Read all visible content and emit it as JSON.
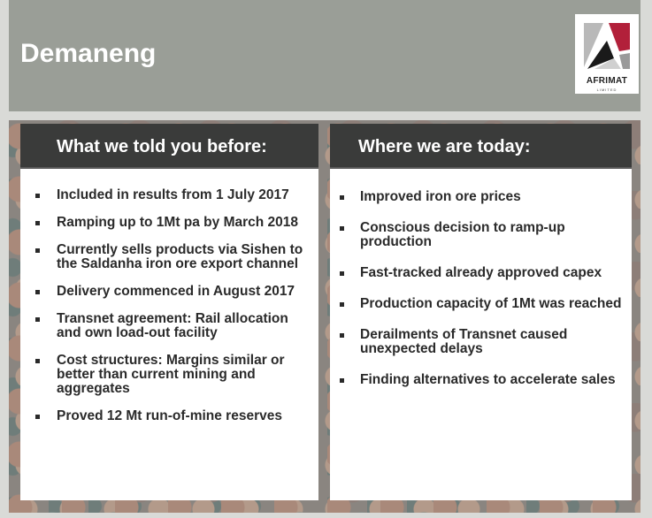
{
  "header": {
    "title": "Demaneng",
    "logo_text": "AFRIMAT",
    "logo_sub": "LIMITED",
    "logo_icon": "afrimat-logo"
  },
  "colors": {
    "header_bg": "#9a9e97",
    "panel_head": "#3a3b3a",
    "logo_red": "#b2203a"
  },
  "left": {
    "heading": "What we told you before:",
    "items": [
      "Included in results from 1 July 2017",
      "Ramping up to 1Mt pa by March 2018",
      "Currently sells products via Sishen to the Saldanha iron ore export channel",
      "Delivery commenced in August 2017",
      "Transnet agreement:  Rail allocation and own load-out facility",
      "Cost structures:  Margins similar or better than current mining and aggregates",
      "Proved 12 Mt run-of-mine reserves"
    ]
  },
  "right": {
    "heading": "Where we are today:",
    "items": [
      "Improved iron ore prices",
      "Conscious decision to ramp-up production",
      "Fast-tracked already approved capex",
      "Production capacity of 1Mt was reached",
      "Derailments of Transnet caused unexpected delays",
      "Finding alternatives to accelerate sales"
    ]
  }
}
